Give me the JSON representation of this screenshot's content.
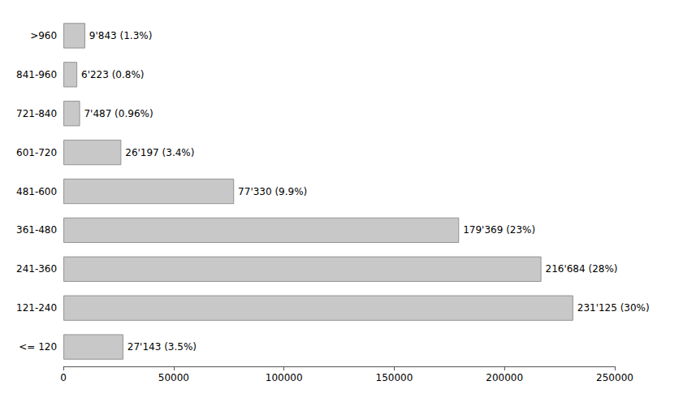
{
  "chart_data": {
    "type": "bar",
    "orientation": "horizontal",
    "categories": [
      "<= 120",
      "121-240",
      "241-360",
      "361-480",
      "481-600",
      "601-720",
      "721-840",
      "841-960",
      ">960"
    ],
    "values": [
      27143,
      231125,
      216684,
      179369,
      77330,
      26197,
      7487,
      6223,
      9843
    ],
    "value_labels": [
      "27'143 (3.5%)",
      "231'125 (30%)",
      "216'684 (28%)",
      "179'369 (23%)",
      "77'330 (9.9%)",
      "26'197 (3.4%)",
      "7'487 (0.96%)",
      "6'223 (0.8%)",
      "9'843 (1.3%)"
    ],
    "color": "#c8c8c8",
    "xlim": [
      0,
      250000
    ],
    "xticks": [
      0,
      50000,
      100000,
      150000,
      200000,
      250000
    ],
    "grid": false
  }
}
